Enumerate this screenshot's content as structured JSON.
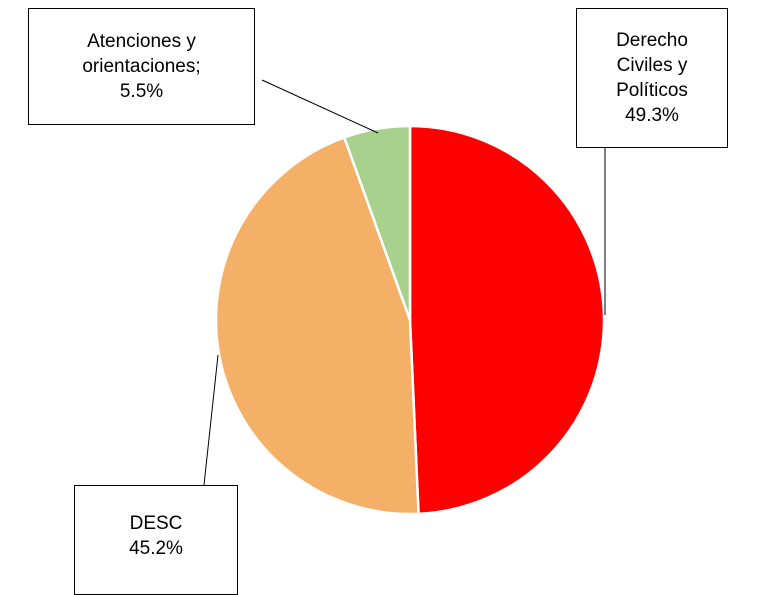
{
  "chart_data": {
    "type": "pie",
    "categories": [
      "Derecho Civiles y Políticos",
      "DESC",
      "Atenciones y orientaciones;"
    ],
    "values": [
      49.3,
      45.2,
      5.5
    ],
    "value_labels": [
      "49.3%",
      "45.2%",
      "5.5%"
    ],
    "colors": [
      "#ff0000",
      "#f4b066",
      "#a9d18e"
    ]
  }
}
